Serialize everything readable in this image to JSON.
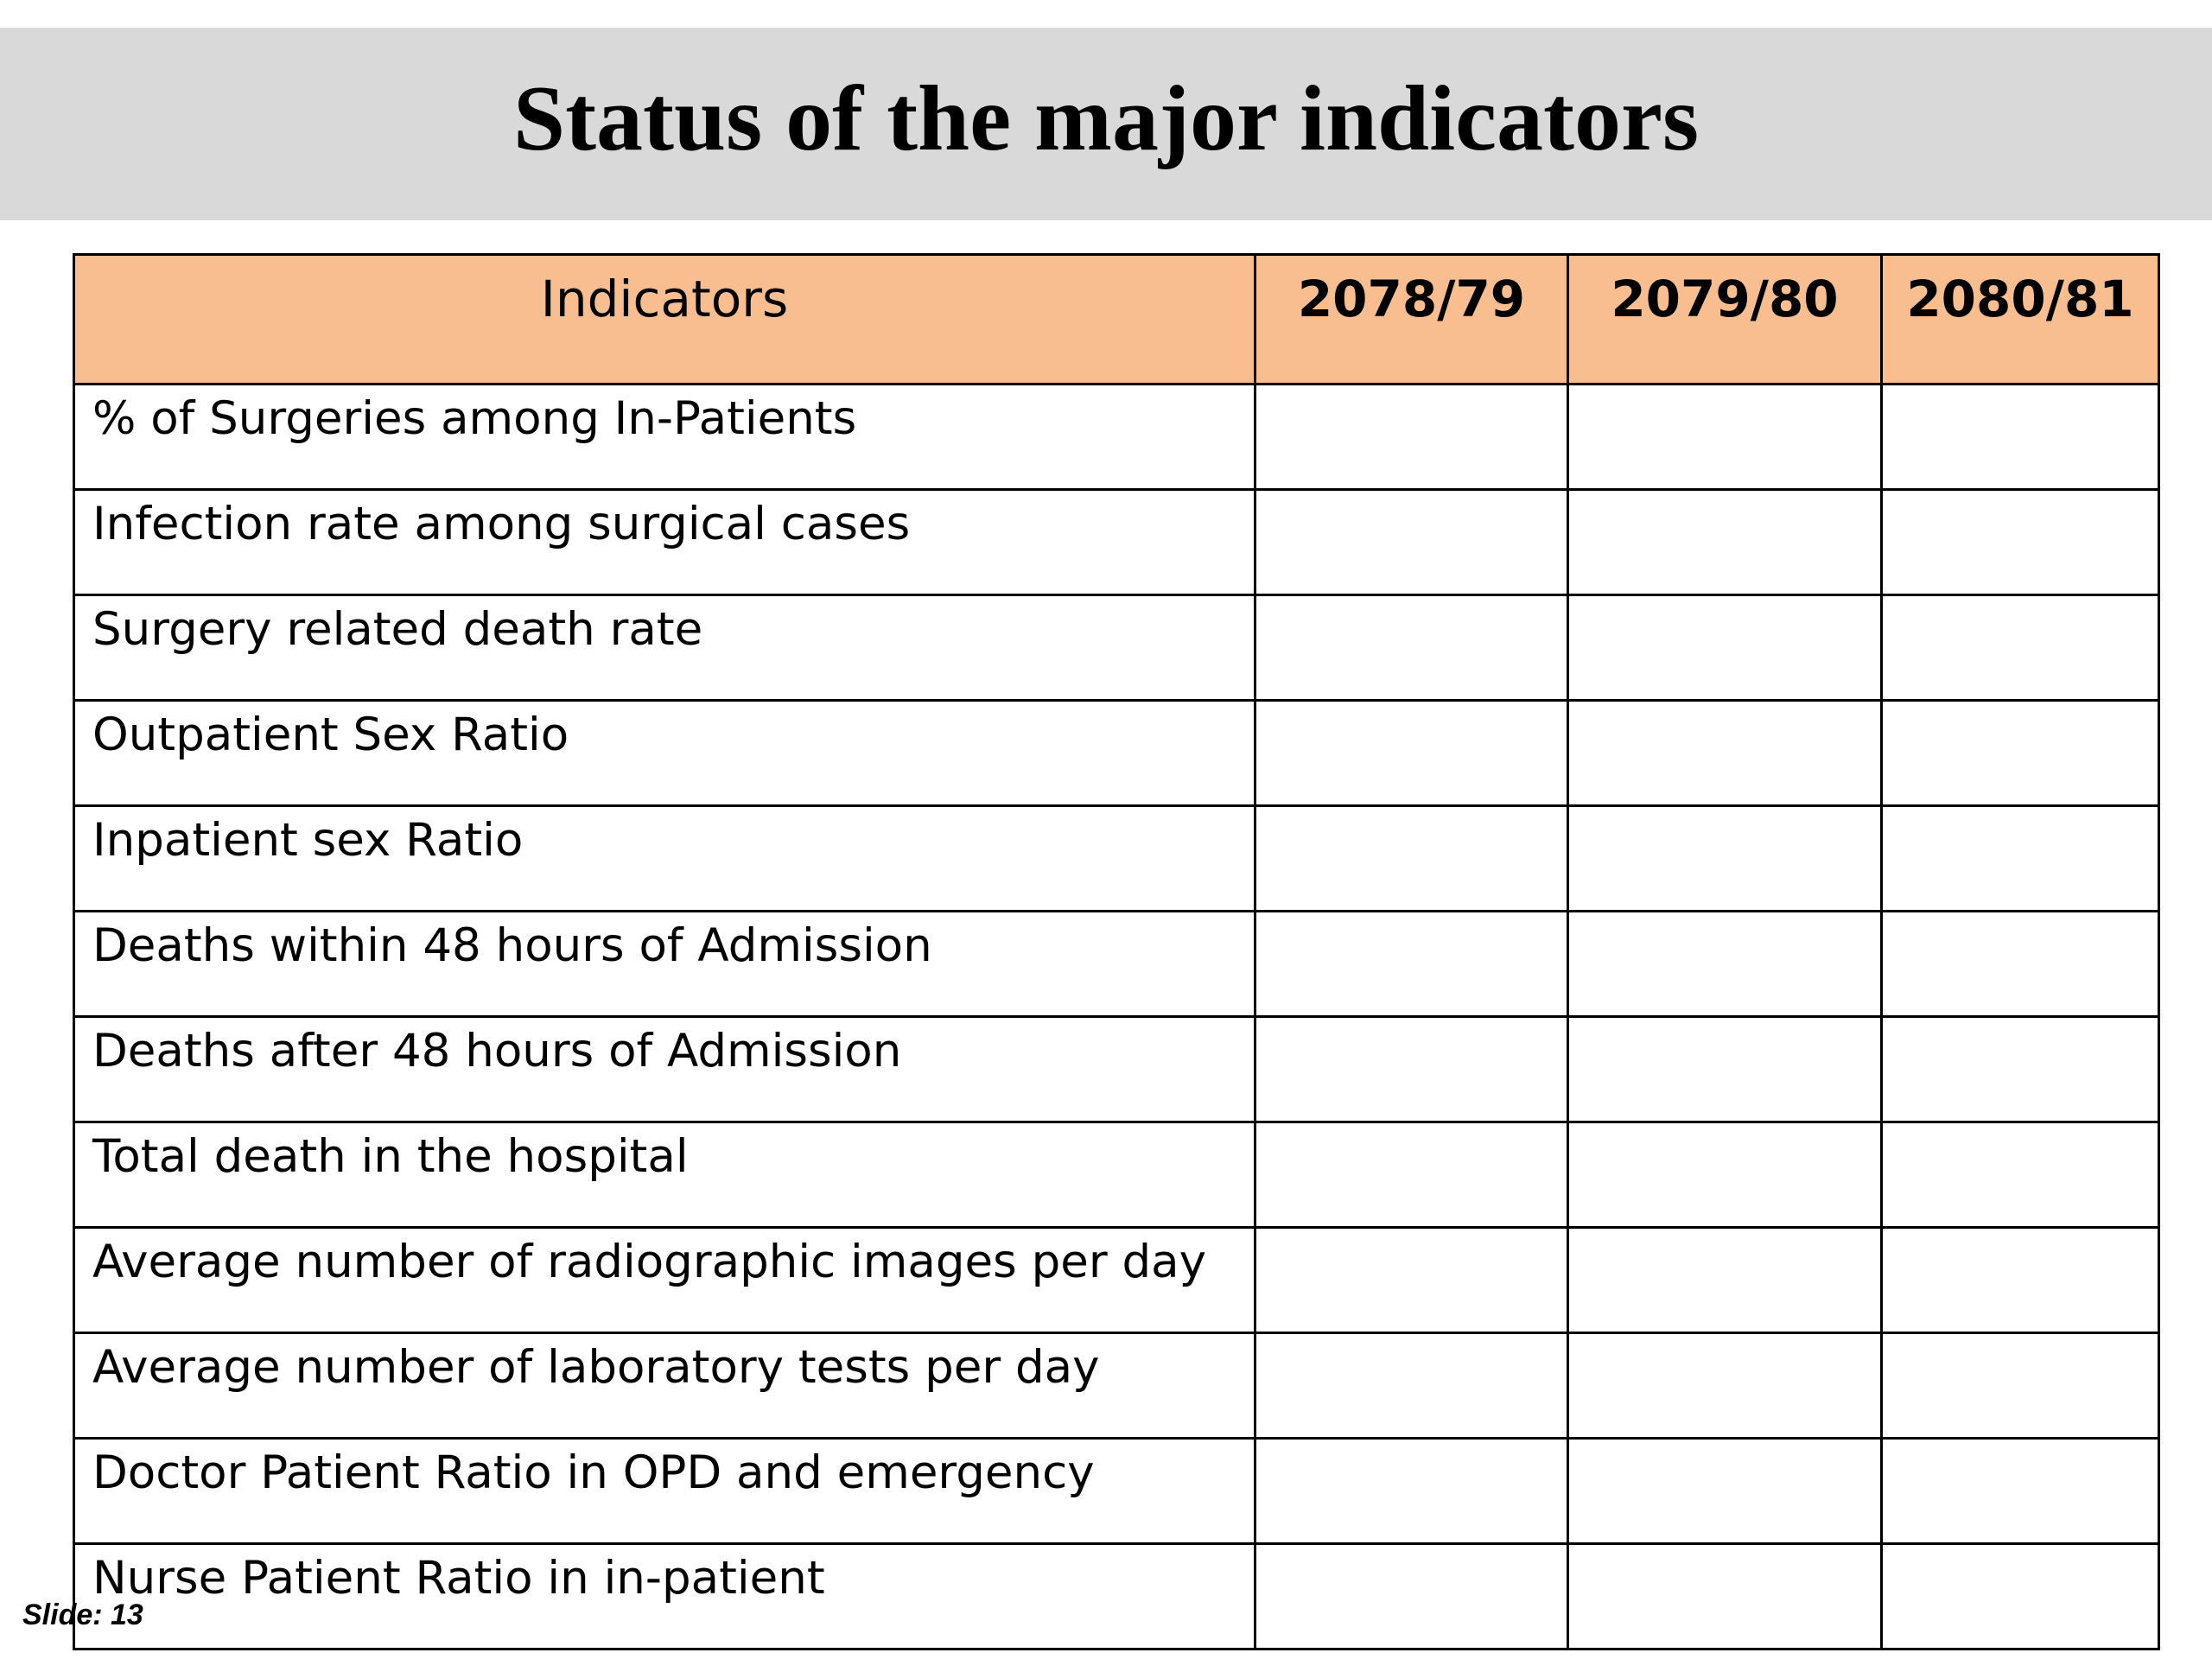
{
  "slide": {
    "title": "Status of the major indicators",
    "slide_label": "Slide: 13"
  },
  "table": {
    "headers": {
      "indicators": "Indicators",
      "years": [
        "2078/79",
        "2079/80",
        "2080/81"
      ]
    },
    "rows": [
      {
        "indicator": "% of Surgeries among In-Patients",
        "values": [
          "",
          "",
          ""
        ]
      },
      {
        "indicator": "Infection rate among surgical cases",
        "values": [
          "",
          "",
          ""
        ]
      },
      {
        "indicator": "Surgery related death rate",
        "values": [
          "",
          "",
          ""
        ]
      },
      {
        "indicator": "Outpatient Sex Ratio",
        "values": [
          "",
          "",
          ""
        ]
      },
      {
        "indicator": "Inpatient sex Ratio",
        "values": [
          "",
          "",
          ""
        ]
      },
      {
        "indicator": "Deaths within 48 hours of Admission",
        "values": [
          "",
          "",
          ""
        ]
      },
      {
        "indicator": "Deaths after 48 hours of Admission",
        "values": [
          "",
          "",
          ""
        ]
      },
      {
        "indicator": "Total death in the hospital",
        "values": [
          "",
          "",
          ""
        ]
      },
      {
        "indicator": "Average number of radiographic images per day",
        "values": [
          "",
          "",
          ""
        ]
      },
      {
        "indicator": "Average number of laboratory tests per day",
        "values": [
          "",
          "",
          ""
        ]
      },
      {
        "indicator": "Doctor Patient Ratio in OPD and emergency",
        "values": [
          "",
          "",
          ""
        ]
      },
      {
        "indicator": "Nurse Patient Ratio in in-patient",
        "values": [
          "",
          "",
          ""
        ]
      }
    ]
  },
  "colors": {
    "title_bar": "#d9d9d9",
    "header_fill": "#f8be90",
    "border": "#000000"
  }
}
